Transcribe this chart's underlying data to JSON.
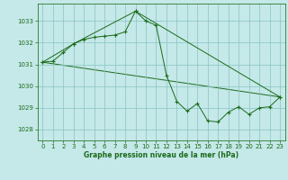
{
  "title": "Graphe pression niveau de la mer (hPa)",
  "background_color": "#c5e8e8",
  "grid_color": "#88c4c4",
  "line_color": "#1a6b1a",
  "spine_color": "#2d7a2d",
  "xlim": [
    -0.5,
    23.5
  ],
  "ylim": [
    1027.5,
    1033.8
  ],
  "yticks": [
    1028,
    1029,
    1030,
    1031,
    1032,
    1033
  ],
  "xticks": [
    0,
    1,
    2,
    3,
    4,
    5,
    6,
    7,
    8,
    9,
    10,
    11,
    12,
    13,
    14,
    15,
    16,
    17,
    18,
    19,
    20,
    21,
    22,
    23
  ],
  "series1_x": [
    0,
    1,
    2,
    3,
    4,
    5,
    6,
    7,
    8,
    9,
    10,
    11,
    12,
    13,
    14,
    15,
    16,
    17,
    18,
    19,
    20,
    21,
    22,
    23
  ],
  "series1_y": [
    1031.1,
    1031.15,
    1031.55,
    1031.95,
    1032.15,
    1032.25,
    1032.3,
    1032.35,
    1032.5,
    1033.45,
    1033.0,
    1032.8,
    1030.5,
    1029.3,
    1028.85,
    1029.2,
    1028.4,
    1028.35,
    1028.8,
    1029.05,
    1028.7,
    1029.0,
    1029.05,
    1029.5
  ],
  "series2_x": [
    0,
    3,
    9,
    23
  ],
  "series2_y": [
    1031.1,
    1031.95,
    1033.45,
    1029.5
  ],
  "series3_x": [
    0,
    23
  ],
  "series3_y": [
    1031.1,
    1029.5
  ],
  "tick_fontsize": 5,
  "label_fontsize": 5.5,
  "linewidth": 0.7,
  "markersize": 2.8
}
